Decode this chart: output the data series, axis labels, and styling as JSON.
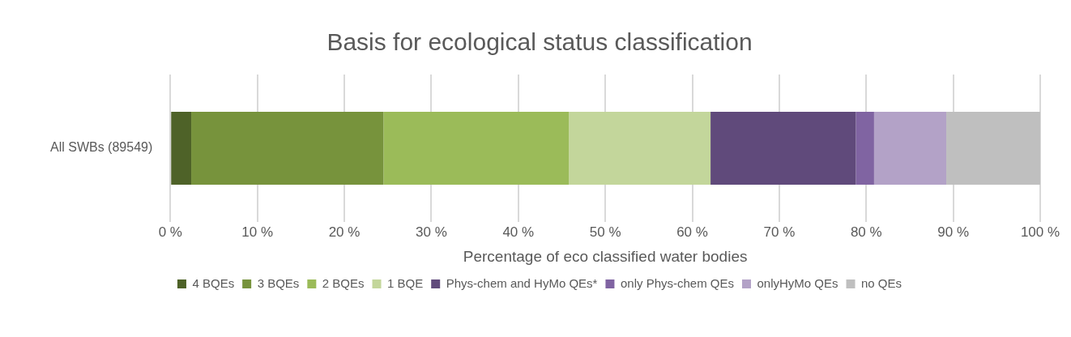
{
  "chart_data": {
    "type": "bar",
    "orientation": "horizontal",
    "stacked": true,
    "title": "Basis for ecological status classification",
    "xlabel": "Percentage of eco classified water bodies",
    "categories": [
      "All SWBs (89549)"
    ],
    "series": [
      {
        "name": "4 BQEs",
        "color": "#4e6228",
        "values": [
          2.4
        ]
      },
      {
        "name": "3 BQEs",
        "color": "#77933c",
        "values": [
          22.1
        ]
      },
      {
        "name": "2 BQEs",
        "color": "#9bbb59",
        "values": [
          21.3
        ]
      },
      {
        "name": "1 BQE",
        "color": "#c3d69b",
        "values": [
          16.3
        ]
      },
      {
        "name": "Phys-chem and HyMo QEs*",
        "color": "#604a7b",
        "values": [
          16.7
        ]
      },
      {
        "name": "only Phys-chem QEs",
        "color": "#8064a2",
        "values": [
          2.1
        ]
      },
      {
        "name": "onlyHyMo QEs",
        "color": "#b3a2c7",
        "values": [
          8.3
        ]
      },
      {
        "name": "no QEs",
        "color": "#bfbfbf",
        "values": [
          10.8
        ]
      }
    ],
    "xlim": [
      0,
      100
    ],
    "xticks": [
      {
        "value": 0,
        "label": "0 %"
      },
      {
        "value": 10,
        "label": "10 %"
      },
      {
        "value": 20,
        "label": "20 %"
      },
      {
        "value": 30,
        "label": "30 %"
      },
      {
        "value": 40,
        "label": "40 %"
      },
      {
        "value": 50,
        "label": "50 %"
      },
      {
        "value": 60,
        "label": "60 %"
      },
      {
        "value": 70,
        "label": "70 %"
      },
      {
        "value": 80,
        "label": "80 %"
      },
      {
        "value": 90,
        "label": "90 %"
      },
      {
        "value": 100,
        "label": "100 %"
      }
    ],
    "grid": "x",
    "legend": "bottom"
  }
}
